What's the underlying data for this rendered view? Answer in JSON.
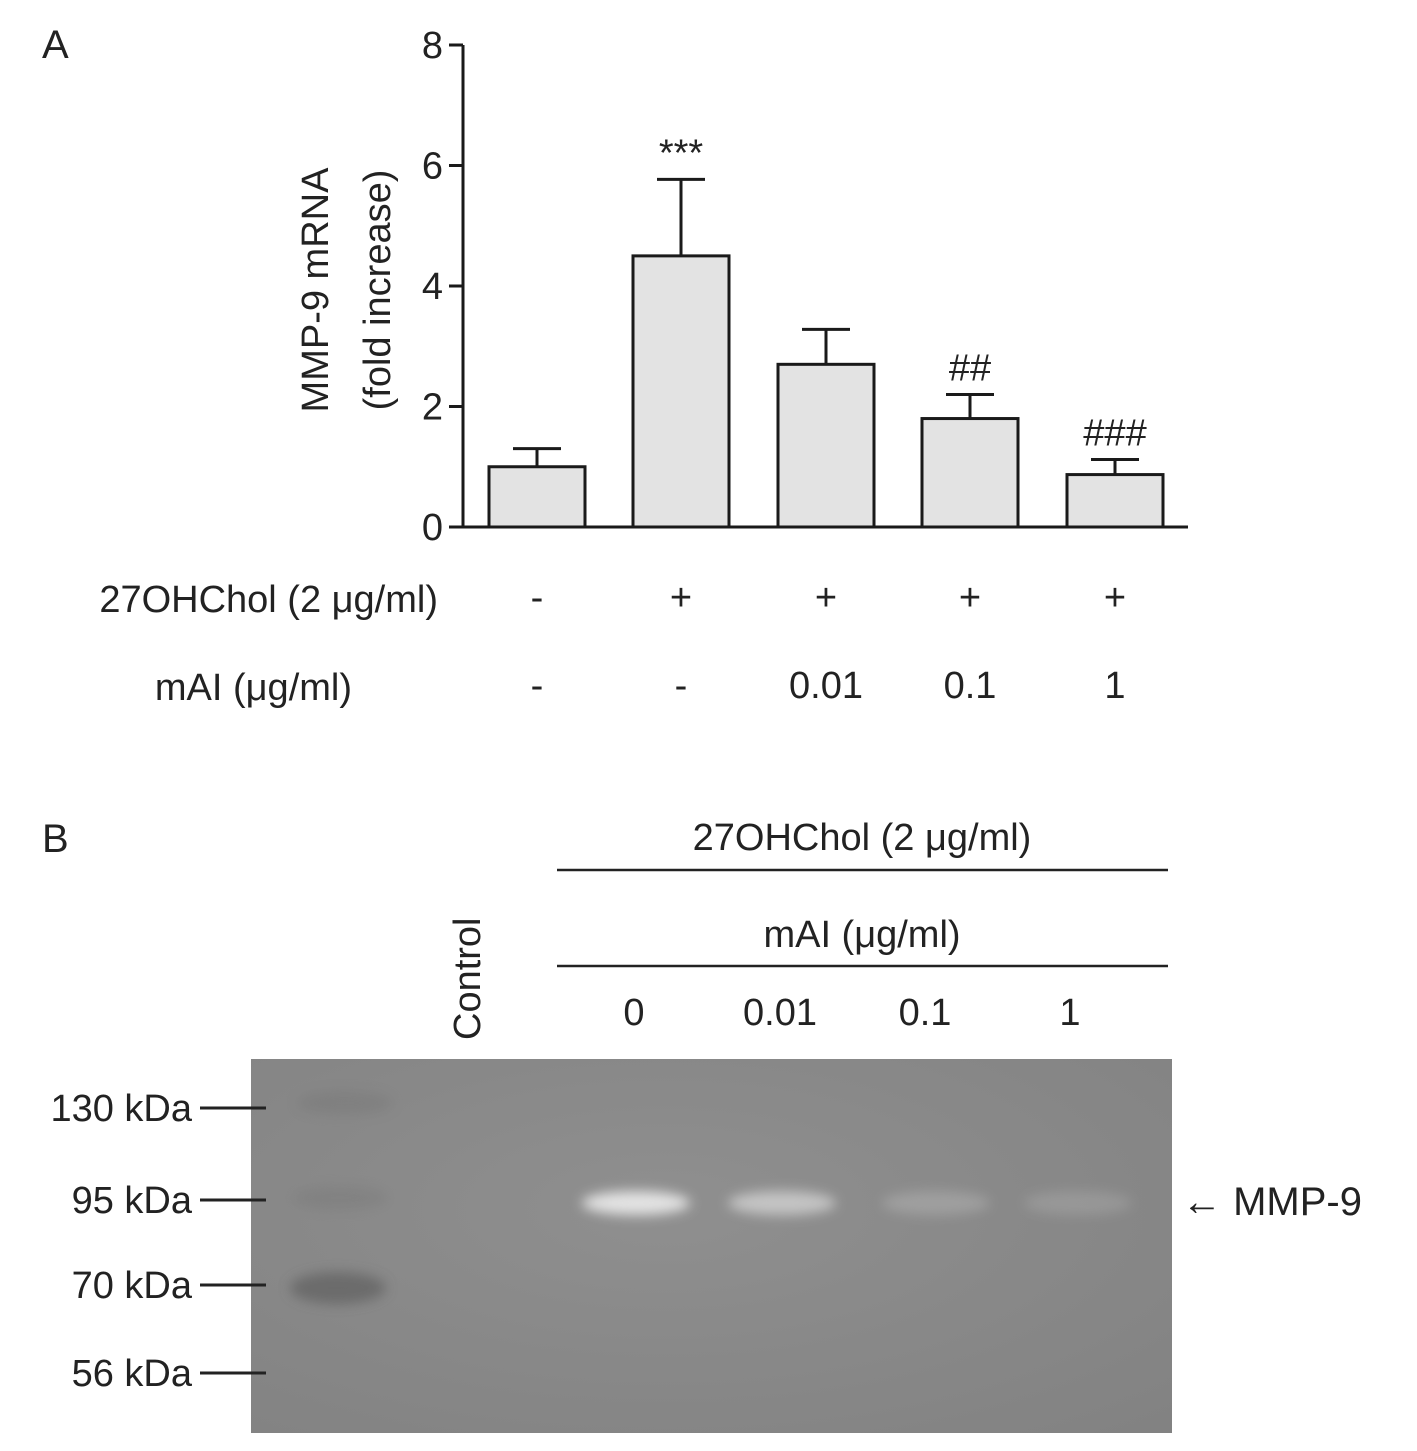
{
  "panel_a": {
    "label": "A",
    "row_labels": {
      "chol": "27OHChol (2 μg/ml)",
      "mai": "mAI (μg/ml)"
    },
    "chol_values": [
      "-",
      "+",
      "+",
      "+",
      "+"
    ],
    "mai_values": [
      "-",
      "-",
      "0.01",
      "0.1",
      "1"
    ]
  },
  "chart_data": {
    "type": "bar",
    "categories": [
      "-/-",
      "+/-",
      "+/0.01",
      "+/0.1",
      "+/1"
    ],
    "values": [
      1.0,
      4.5,
      2.7,
      1.8,
      0.87
    ],
    "errors": [
      0.3,
      1.27,
      0.58,
      0.4,
      0.25
    ],
    "annotations": [
      "",
      "***",
      "",
      "##",
      "###"
    ],
    "ylabel_line1": "MMP-9 mRNA",
    "ylabel_line2": "(fold increase)",
    "ylim": [
      0,
      8
    ],
    "yticks": [
      0,
      2,
      4,
      6,
      8
    ],
    "colors": {
      "bar_fill": "#e3e3e3",
      "stroke": "#1a1a1a"
    }
  },
  "panel_b": {
    "label": "B",
    "header_chol": "27OHChol (2 μg/ml)",
    "header_mai": "mAI (μg/ml)",
    "control_label": "Control",
    "lane_labels": [
      "0",
      "0.01",
      "0.1",
      "1"
    ],
    "markers": [
      "130  kDa",
      "95 kDa",
      "70 kDa",
      "56 kDa"
    ],
    "band_label": "← MMP-9",
    "band_intensity": [
      0,
      0.85,
      0.55,
      0.2,
      0.15
    ],
    "colors": {
      "gel": "#8c8c8c"
    }
  }
}
